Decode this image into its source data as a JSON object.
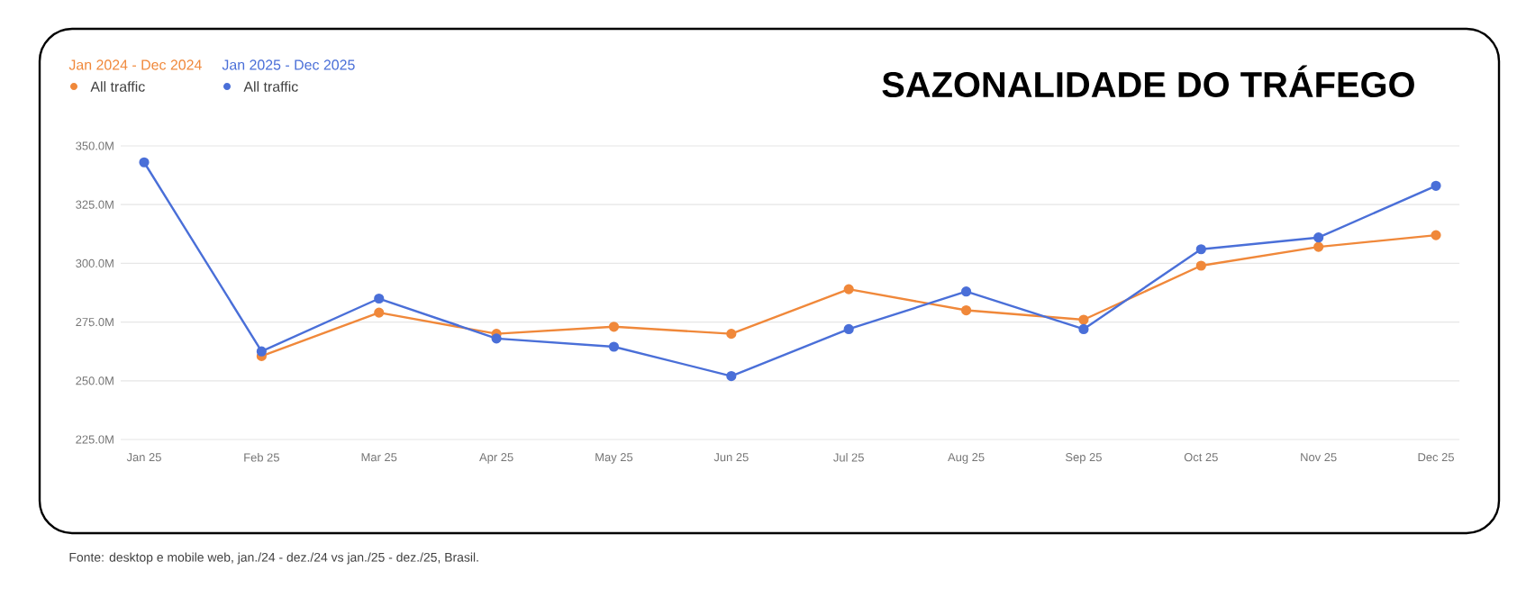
{
  "chart_data": {
    "type": "line",
    "title": "SAZONALIDADE DO TRÁFEGO",
    "categories": [
      "Jan 25",
      "Feb 25",
      "Mar 25",
      "Apr 25",
      "May 25",
      "Jun 25",
      "Jul 25",
      "Aug 25",
      "Sep 25",
      "Oct 25",
      "Nov 25",
      "Dec 25"
    ],
    "series": [
      {
        "name": "Jan 2024 - Dec 2024",
        "color": "#f0883a",
        "values": [
          null,
          260.5,
          279,
          270,
          273,
          270,
          289,
          280,
          276,
          299,
          307,
          312
        ]
      },
      {
        "name": "Jan 2025 - Dec 2025",
        "color": "#4a6fd8",
        "values": [
          343,
          262.5,
          285,
          268,
          264.5,
          252,
          272,
          288,
          272,
          306,
          311,
          333
        ]
      }
    ],
    "ylim": [
      225,
      350
    ],
    "yticks": [
      {
        "value": 225,
        "label": "225.0M"
      },
      {
        "value": 250,
        "label": "250.0M"
      },
      {
        "value": 275,
        "label": "275.0M"
      },
      {
        "value": 300,
        "label": "300.0M"
      },
      {
        "value": 325,
        "label": "325.0M"
      },
      {
        "value": 350,
        "label": "350.0M"
      }
    ],
    "grid": "y",
    "legend": "top left",
    "marker": "circle",
    "line_style": "solid",
    "annotations": [
      "All traffic",
      "All traffic",
      "Fonte: desktop e mobile web, jan./24 - dez./24 vs jan./25 - dez./25, Brasil."
    ]
  }
}
